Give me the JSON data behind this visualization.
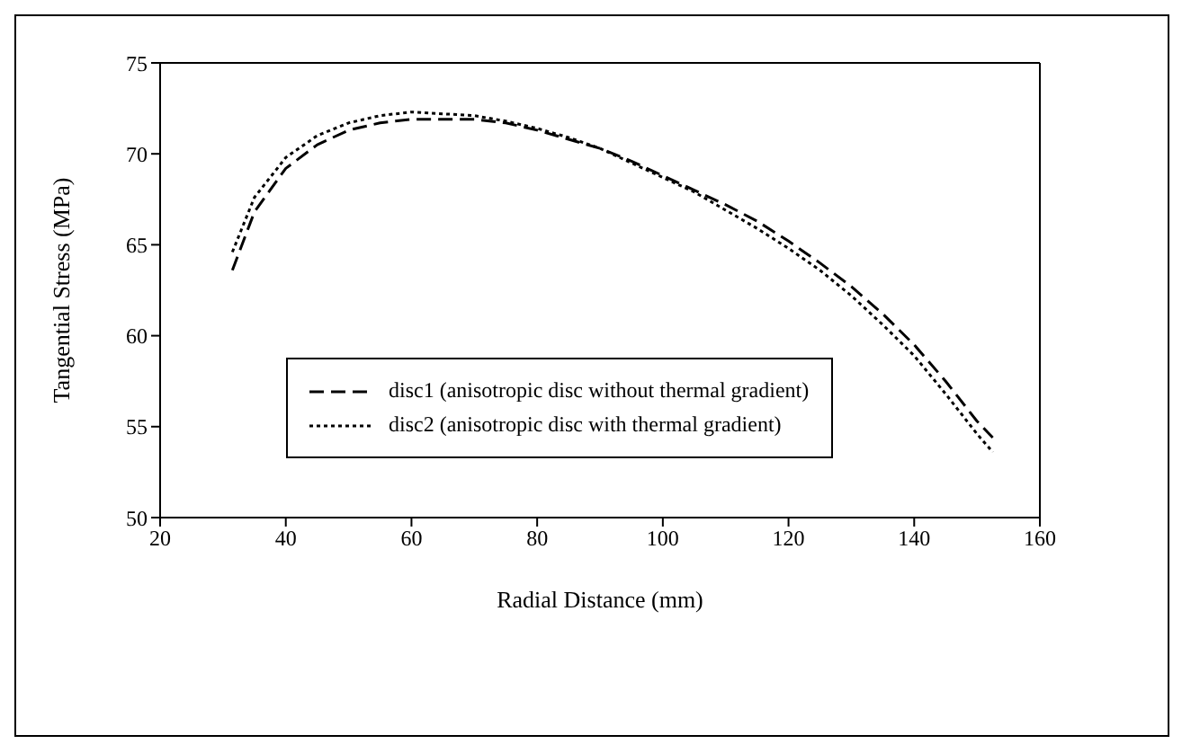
{
  "chart_data": {
    "type": "line",
    "xlabel": "Radial Distance (mm)",
    "ylabel": "Tangential Stress (MPa)",
    "xlim": [
      20,
      160
    ],
    "xticks": [
      20,
      40,
      60,
      80,
      100,
      120,
      140,
      160
    ],
    "ylim": [
      50,
      75
    ],
    "yticks": [
      50,
      55,
      60,
      65,
      70,
      75
    ],
    "legend": "bottom",
    "marker": "none",
    "x": [
      31.5,
      35,
      40,
      45,
      50,
      55,
      60,
      65,
      70,
      75,
      80,
      85,
      90,
      95,
      100,
      105,
      110,
      115,
      120,
      125,
      130,
      135,
      140,
      145,
      150,
      152.5
    ],
    "series": [
      {
        "name": "disc1 (anisotropic disc without thermal gradient)",
        "color": "#000000",
        "line_style": "dashed",
        "values": [
          63.6,
          66.8,
          69.2,
          70.5,
          71.3,
          71.7,
          71.9,
          71.9,
          71.9,
          71.7,
          71.3,
          70.8,
          70.3,
          69.6,
          68.8,
          68.0,
          67.2,
          66.3,
          65.2,
          64.0,
          62.7,
          61.2,
          59.5,
          57.5,
          55.3,
          54.4
        ]
      },
      {
        "name": "disc2 (anisotropic disc with thermal gradient)",
        "color": "#000000",
        "line_style": "dotted",
        "values": [
          64.6,
          67.6,
          69.8,
          71.0,
          71.7,
          72.1,
          72.3,
          72.2,
          72.1,
          71.8,
          71.4,
          70.9,
          70.3,
          69.5,
          68.7,
          67.9,
          66.9,
          65.9,
          64.8,
          63.6,
          62.2,
          60.6,
          58.9,
          56.8,
          54.6,
          53.6
        ]
      }
    ]
  }
}
